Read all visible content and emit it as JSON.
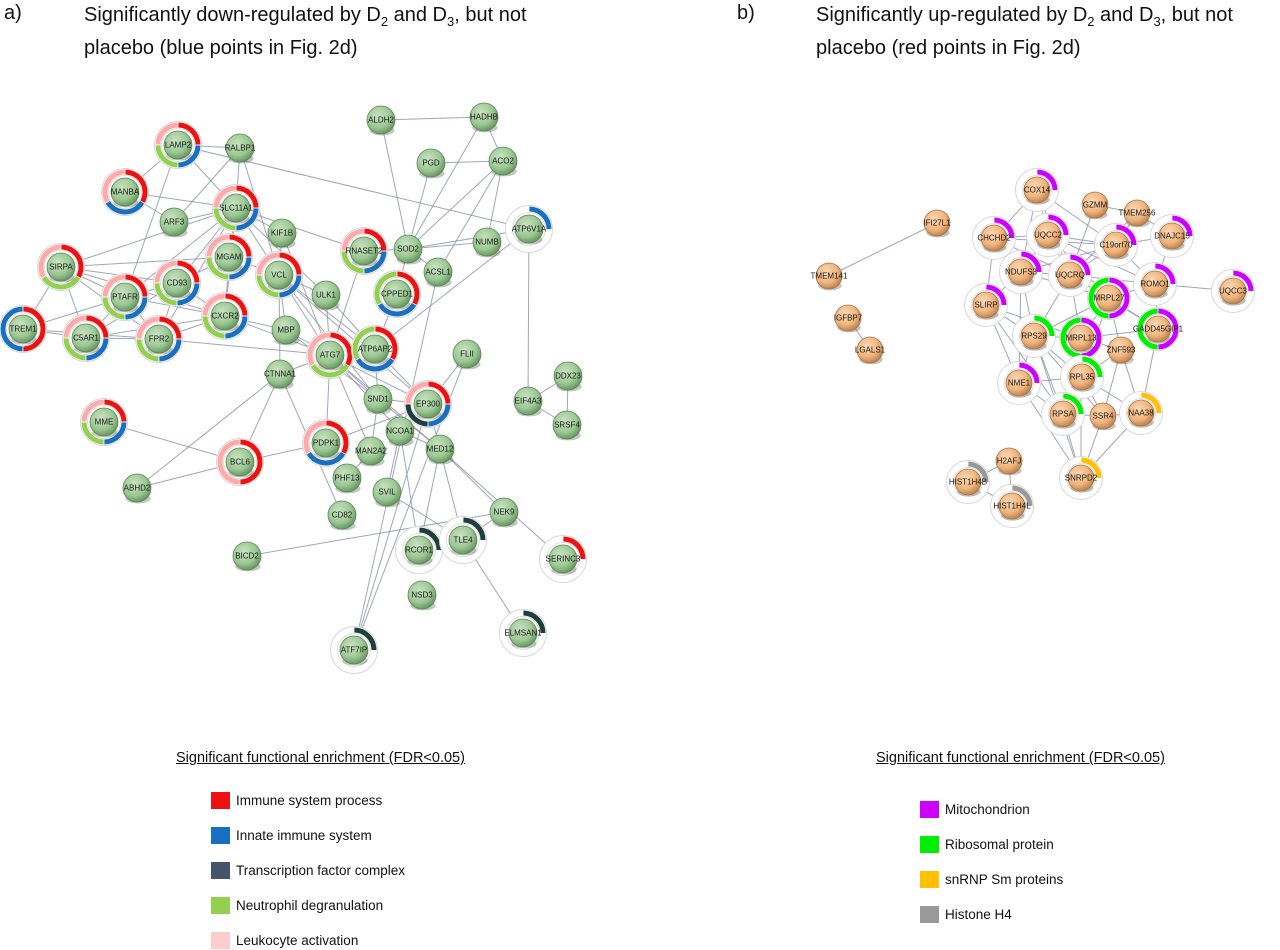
{
  "panel_a": {
    "label": "a)",
    "title_line1_prefix": "Significantly down-regulated by D",
    "title_sub1": "2",
    "title_mid": " and D",
    "title_sub2": "3",
    "title_line1_suffix": ", but not",
    "title_line2": "placebo (blue points in Fig. 2d)",
    "legend_title": "Significant functional enrichment (FDR<0.05)",
    "legend": [
      {
        "label": "Immune system process",
        "color": "#ee1111"
      },
      {
        "label": "Innate immune system",
        "color": "#1a70c0"
      },
      {
        "label": "Transcription factor complex",
        "color": "#44546a"
      },
      {
        "label": "Neutrophil degranulation",
        "color": "#92d050"
      },
      {
        "label": "Leukocyte activation",
        "color": "#ffcccc"
      }
    ]
  },
  "panel_b": {
    "label": "b)",
    "title_line1_prefix": "Significantly up-regulated by D",
    "title_sub1": "2",
    "title_mid": " and D",
    "title_sub2": "3",
    "title_line1_suffix": ", but not",
    "title_line2": "placebo (red points in Fig. 2d)",
    "legend_title": "Significant functional enrichment (FDR<0.05)",
    "legend": [
      {
        "label": "Mitochondrion",
        "color": "#cc00ff"
      },
      {
        "label": "Ribosomal protein",
        "color": "#00ee00"
      },
      {
        "label": "snRNP Sm proteins",
        "color": "#ffc000"
      },
      {
        "label": "Histone H4",
        "color": "#999999"
      }
    ]
  },
  "network_a": {
    "node_color": "#9cc894",
    "nodes": [
      {
        "id": "LAMP2",
        "ring": [
          "#ee1111",
          "#1a70c0",
          "#92d050",
          "#ffaaaa"
        ]
      },
      {
        "id": "RALBP1",
        "ring": []
      },
      {
        "id": "ALDH2",
        "ring": []
      },
      {
        "id": "HADHB",
        "ring": []
      },
      {
        "id": "PGD",
        "ring": []
      },
      {
        "id": "ACO2",
        "ring": []
      },
      {
        "id": "MANBA",
        "ring": [
          "#ee1111",
          "#1a70c0",
          "#ffaaaa"
        ]
      },
      {
        "id": "SLC11A1",
        "ring": [
          "#ee1111",
          "#1a70c0",
          "#92d050",
          "#ffaaaa"
        ]
      },
      {
        "id": "ARF3",
        "ring": []
      },
      {
        "id": "KIF1B",
        "ring": []
      },
      {
        "id": "SOD2",
        "ring": []
      },
      {
        "id": "NUMB",
        "ring": []
      },
      {
        "id": "ATP6V1A",
        "ring": [
          "#1a70c0"
        ]
      },
      {
        "id": "RNASET2",
        "ring": [
          "#ee1111",
          "#1a70c0",
          "#92d050",
          "#ffaaaa"
        ]
      },
      {
        "id": "SIRPA",
        "ring": [
          "#ee1111",
          "#92d050",
          "#ffaaaa"
        ]
      },
      {
        "id": "MGAM",
        "ring": [
          "#ee1111",
          "#1a70c0",
          "#92d050",
          "#ffaaaa"
        ]
      },
      {
        "id": "VCL",
        "ring": [
          "#ee1111",
          "#1a70c0",
          "#92d050",
          "#ffaaaa"
        ]
      },
      {
        "id": "ACSL1",
        "ring": []
      },
      {
        "id": "CD93",
        "ring": [
          "#ee1111",
          "#1a70c0",
          "#92d050",
          "#ffaaaa"
        ]
      },
      {
        "id": "PTAFR",
        "ring": [
          "#ee1111",
          "#1a70c0",
          "#92d050",
          "#ffaaaa"
        ]
      },
      {
        "id": "ULK1",
        "ring": []
      },
      {
        "id": "CPPED1",
        "ring": [
          "#ee1111",
          "#1a70c0",
          "#92d050"
        ]
      },
      {
        "id": "TREM1",
        "ring": [
          "#ee1111",
          "#1a70c0"
        ]
      },
      {
        "id": "C5AR1",
        "ring": [
          "#ee1111",
          "#1a70c0",
          "#92d050",
          "#ffaaaa"
        ]
      },
      {
        "id": "FPR2",
        "ring": [
          "#ee1111",
          "#1a70c0",
          "#92d050",
          "#ffaaaa"
        ]
      },
      {
        "id": "CXCR2",
        "ring": [
          "#ee1111",
          "#1a70c0",
          "#92d050",
          "#ffaaaa"
        ]
      },
      {
        "id": "MBP",
        "ring": []
      },
      {
        "id": "ATG7",
        "ring": [
          "#ee1111",
          "#92d050",
          "#ffaaaa"
        ]
      },
      {
        "id": "ATP6AP2",
        "ring": [
          "#ee1111",
          "#1a70c0",
          "#92d050"
        ]
      },
      {
        "id": "CTNNA1",
        "ring": []
      },
      {
        "id": "FLII",
        "ring": []
      },
      {
        "id": "DDX23",
        "ring": []
      },
      {
        "id": "EIF4A3",
        "ring": []
      },
      {
        "id": "SRSF4",
        "ring": []
      },
      {
        "id": "SND1",
        "ring": []
      },
      {
        "id": "EP300",
        "ring": [
          "#ee1111",
          "#1a70c0",
          "#1f3f3f",
          "#ffaaaa"
        ]
      },
      {
        "id": "MME",
        "ring": [
          "#ee1111",
          "#1a70c0",
          "#92d050",
          "#ffaaaa"
        ]
      },
      {
        "id": "NCOA1",
        "ring": []
      },
      {
        "id": "PDPK1",
        "ring": [
          "#ee1111",
          "#1a70c0",
          "#ffaaaa"
        ]
      },
      {
        "id": "MAN2A2",
        "ring": []
      },
      {
        "id": "MED12",
        "ring": []
      },
      {
        "id": "BCL6",
        "ring": [
          "#ee1111",
          "#ffaaaa"
        ]
      },
      {
        "id": "PHF13",
        "ring": []
      },
      {
        "id": "ABHD2",
        "ring": []
      },
      {
        "id": "SVIL",
        "ring": []
      },
      {
        "id": "NEK9",
        "ring": []
      },
      {
        "id": "CD82",
        "ring": []
      },
      {
        "id": "RCOR1",
        "ring": [
          "#1f3f3f"
        ]
      },
      {
        "id": "TLE4",
        "ring": [
          "#1f3f3f"
        ]
      },
      {
        "id": "SERINC3",
        "ring": [
          "#ee1111"
        ]
      },
      {
        "id": "BICD2",
        "ring": []
      },
      {
        "id": "NSD3",
        "ring": []
      },
      {
        "id": "ELMSAN1",
        "ring": [
          "#1f3f3f"
        ]
      },
      {
        "id": "ATF7IP",
        "ring": [
          "#1f3f3f"
        ]
      }
    ]
  },
  "network_b": {
    "node_color": "#f0b47c",
    "nodes": [
      {
        "id": "COX14",
        "ring": [
          "#cc00ff"
        ]
      },
      {
        "id": "GZMM",
        "ring": []
      },
      {
        "id": "TMEM256",
        "ring": []
      },
      {
        "id": "IFI27L1",
        "ring": []
      },
      {
        "id": "CHCHD2",
        "ring": [
          "#cc00ff"
        ]
      },
      {
        "id": "UQCC2",
        "ring": [
          "#cc00ff"
        ]
      },
      {
        "id": "C19orf70",
        "ring": [
          "#cc00ff"
        ]
      },
      {
        "id": "DNAJC15",
        "ring": [
          "#cc00ff"
        ]
      },
      {
        "id": "TMEM141",
        "ring": []
      },
      {
        "id": "NDUFS3",
        "ring": [
          "#cc00ff"
        ]
      },
      {
        "id": "UQCRQ",
        "ring": [
          "#cc00ff"
        ]
      },
      {
        "id": "ROMO1",
        "ring": [
          "#cc00ff"
        ]
      },
      {
        "id": "UQCC3",
        "ring": [
          "#cc00ff"
        ]
      },
      {
        "id": "MRPL27",
        "ring": [
          "#cc00ff",
          "#00ee00"
        ]
      },
      {
        "id": "SLIRP",
        "ring": [
          "#cc00ff"
        ]
      },
      {
        "id": "IGFBP7",
        "ring": []
      },
      {
        "id": "GADD45GIP1",
        "ring": [
          "#cc00ff",
          "#00ee00"
        ]
      },
      {
        "id": "RPS29",
        "ring": [
          "#00ee00"
        ]
      },
      {
        "id": "MRPL13",
        "ring": [
          "#cc00ff",
          "#00ee00"
        ]
      },
      {
        "id": "LGALS1",
        "ring": []
      },
      {
        "id": "ZNF593",
        "ring": []
      },
      {
        "id": "NME1",
        "ring": [
          "#cc00ff"
        ]
      },
      {
        "id": "RPL35",
        "ring": [
          "#00ee00"
        ]
      },
      {
        "id": "RPSA",
        "ring": [
          "#00ee00"
        ]
      },
      {
        "id": "SSR4",
        "ring": []
      },
      {
        "id": "NAA38",
        "ring": [
          "#ffc000"
        ]
      },
      {
        "id": "H2AFJ",
        "ring": []
      },
      {
        "id": "HIST1H4B",
        "ring": [
          "#999999"
        ]
      },
      {
        "id": "SNRPD2",
        "ring": [
          "#ffc000"
        ]
      },
      {
        "id": "HIST1H4L",
        "ring": [
          "#999999"
        ]
      }
    ]
  }
}
